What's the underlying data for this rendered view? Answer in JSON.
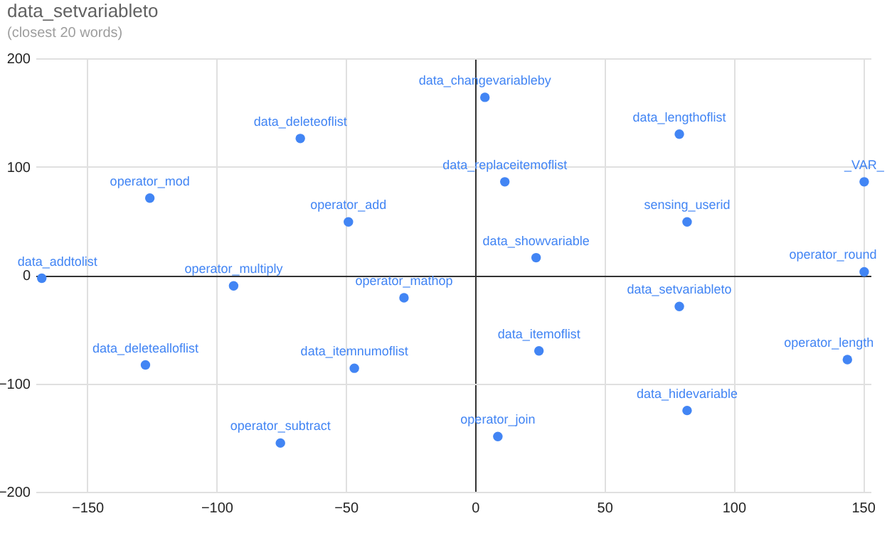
{
  "chart_data": {
    "type": "scatter",
    "title": "data_setvariableto",
    "subtitle": "(closest 20 words)",
    "x": [
      -167.6,
      -125.8,
      -67.6,
      -49,
      -93.4,
      -27.5,
      -127.5,
      -46.7,
      -75.3,
      3.8,
      79,
      11.5,
      150.5,
      82,
      23.6,
      150.5,
      79,
      24.7,
      144,
      82,
      8.8
    ],
    "series": [
      {
        "color": "#4285f4",
        "values": [
          -3,
          71,
          126,
          49,
          -10,
          -21,
          -83,
          -86,
          -155,
          164,
          130,
          86,
          86,
          49,
          16,
          3,
          -29,
          -70,
          -78,
          -125,
          -149
        ],
        "value_labels": [
          "data_addtolist",
          "operator_mod",
          "data_deleteoflist",
          "operator_add",
          "operator_multiply",
          "operator_mathop",
          "data_deletealloflist",
          "data_itemnumoflist",
          "operator_subtract",
          "data_changevariableby",
          "data_lengthoflist",
          "data_replaceitemoflist",
          "_VAR_",
          "sensing_userid",
          "data_showvariable",
          "operator_round",
          "data_setvariableto",
          "data_itemoflist",
          "operator_length",
          "data_hidevariable",
          "operator_join"
        ]
      }
    ],
    "xlim": [
      -170,
      153
    ],
    "ylim": [
      -200,
      200
    ],
    "xticks": [
      -150,
      -100,
      -50,
      0,
      50,
      100,
      150
    ],
    "yticks": [
      -200,
      -100,
      0,
      100,
      200
    ],
    "grid": true,
    "marker": "circle"
  }
}
